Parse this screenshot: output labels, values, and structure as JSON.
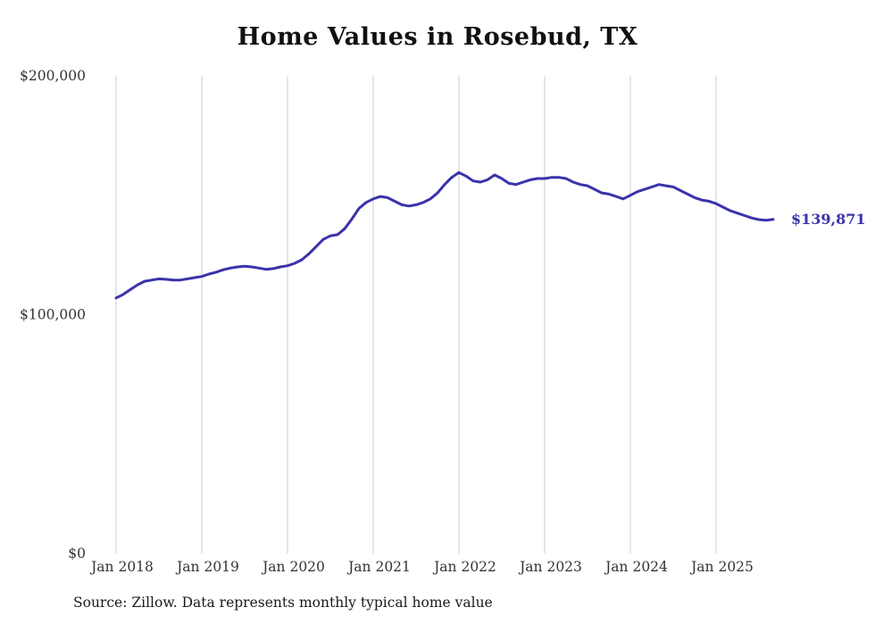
{
  "chart_data": {
    "type": "line",
    "title": "Home Values in Rosebud, TX",
    "source": "Source: Zillow. Data represents monthly typical home value",
    "end_label": "$139,871",
    "final_value": 139871,
    "ylim": [
      0,
      200000
    ],
    "grid": "vertical-only",
    "line_color": "#3a33ab",
    "grid_color": "#cccccc",
    "text_color": "#333333",
    "y_ticks": [
      {
        "label": "$0",
        "value": 0
      },
      {
        "label": "$100,000",
        "value": 100000
      },
      {
        "label": "$200,000",
        "value": 200000
      }
    ],
    "x_ticks": [
      {
        "label": "Jan 2018",
        "month_index": 0
      },
      {
        "label": "Jan 2019",
        "month_index": 12
      },
      {
        "label": "Jan 2020",
        "month_index": 24
      },
      {
        "label": "Jan 2021",
        "month_index": 36
      },
      {
        "label": "Jan 2022",
        "month_index": 48
      },
      {
        "label": "Jan 2023",
        "month_index": 60
      },
      {
        "label": "Jan 2024",
        "month_index": 72
      },
      {
        "label": "Jan 2025",
        "month_index": 84
      }
    ],
    "x_unit": "month",
    "x_start": "Jan 2018",
    "values": [
      107000,
      108500,
      110500,
      112500,
      114000,
      114500,
      115000,
      114800,
      114500,
      114500,
      115000,
      115500,
      116000,
      117000,
      117800,
      118800,
      119500,
      120000,
      120300,
      120000,
      119500,
      119000,
      119300,
      120000,
      120500,
      121500,
      123000,
      125500,
      128500,
      131500,
      133000,
      133500,
      136000,
      140000,
      144500,
      147000,
      148500,
      149500,
      149000,
      147500,
      146000,
      145500,
      146000,
      147000,
      148500,
      151000,
      154500,
      157500,
      159500,
      158000,
      156000,
      155500,
      156500,
      158500,
      157000,
      155000,
      154500,
      155500,
      156500,
      157000,
      157000,
      157500,
      157500,
      157000,
      155500,
      154500,
      154000,
      152500,
      151000,
      150500,
      149500,
      148500,
      150000,
      151500,
      152500,
      153500,
      154500,
      154000,
      153500,
      152000,
      150500,
      149000,
      148000,
      147500,
      146500,
      145000,
      143500,
      142500,
      141500,
      140500,
      139800,
      139500,
      139871
    ]
  }
}
